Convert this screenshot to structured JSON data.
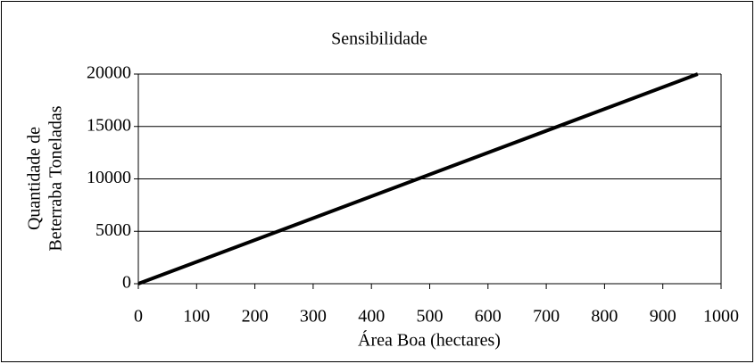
{
  "chart_data": {
    "type": "line",
    "title": "Sensibilidade",
    "xlabel": "Área Boa (hectares)",
    "ylabel": [
      "Quantidade de",
      "Beterraba Toneladas"
    ],
    "x": [
      0,
      960
    ],
    "series": [
      {
        "color": "#000000",
        "values": [
          0,
          20000
        ]
      }
    ],
    "xlim": [
      0,
      1000
    ],
    "xticks": [
      0,
      100,
      200,
      300,
      400,
      500,
      600,
      700,
      800,
      900,
      1000
    ],
    "ylim": [
      0,
      20000
    ],
    "yticks": [
      0,
      5000,
      10000,
      15000,
      20000
    ],
    "grid": true
  }
}
